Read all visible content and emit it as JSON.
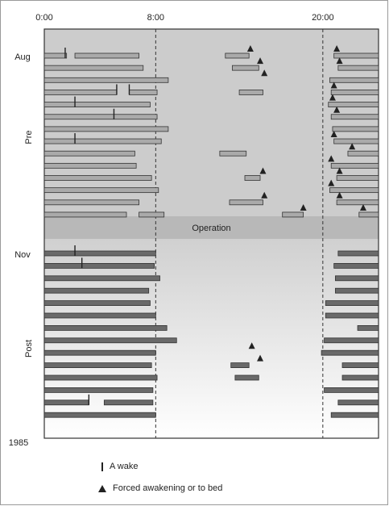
{
  "chart_data": {
    "type": "timeline",
    "x_ticks": [
      "0:00",
      "8:00",
      "20:00"
    ],
    "x_range_hours": [
      0,
      24
    ],
    "dashed_lines_hours": [
      8,
      20
    ],
    "labels": {
      "aug": "Aug",
      "pre": "Pre",
      "operation": "Operation",
      "nov": "Nov",
      "post": "Post",
      "year": "1985"
    },
    "legend": {
      "wake": "A wake",
      "forced": "Forced awakening or to bed"
    },
    "colors": {
      "pre_bar": "#aaaaaa",
      "post_bar": "#6a6a6a",
      "pre_background": "#cccccc",
      "operation_band": "#b8b8b8",
      "outline": "#333333"
    },
    "pre_rows": [
      {
        "bars": [
          [
            0,
            1.6
          ],
          [
            2.2,
            6.8
          ],
          [
            13,
            14.7
          ],
          [
            20.8,
            24
          ]
        ],
        "wakes": [
          1.5
        ],
        "forced": [
          14.8,
          21
        ]
      },
      {
        "bars": [
          [
            0,
            7.1
          ],
          [
            13.5,
            15.4
          ],
          [
            21.1,
            24
          ]
        ],
        "wakes": [],
        "forced": [
          15.5,
          21.2
        ]
      },
      {
        "bars": [
          [
            0,
            8.9
          ],
          [
            20.5,
            24
          ]
        ],
        "wakes": [],
        "forced": [
          15.8
        ]
      },
      {
        "bars": [
          [
            0,
            5.2
          ],
          [
            6.1,
            8.1
          ],
          [
            14,
            15.7
          ],
          [
            20.6,
            24
          ]
        ],
        "wakes": [
          5.2,
          6.1
        ],
        "forced": [
          20.8
        ]
      },
      {
        "bars": [
          [
            0,
            7.6
          ],
          [
            20.4,
            24
          ]
        ],
        "wakes": [
          2.2
        ],
        "forced": [
          20.7
        ]
      },
      {
        "bars": [
          [
            0,
            8.1
          ],
          [
            20.6,
            24
          ]
        ],
        "wakes": [
          5
        ],
        "forced": [
          21
        ]
      },
      {
        "bars": [
          [
            0,
            8.9
          ],
          [
            20.7,
            24
          ]
        ],
        "wakes": [],
        "forced": []
      },
      {
        "bars": [
          [
            0,
            8.4
          ],
          [
            20.8,
            24
          ]
        ],
        "wakes": [
          2.2
        ],
        "forced": [
          20.8
        ]
      },
      {
        "bars": [
          [
            0,
            6.5
          ],
          [
            12.6,
            14.5
          ],
          [
            21.8,
            24
          ]
        ],
        "wakes": [],
        "forced": [
          22.1
        ]
      },
      {
        "bars": [
          [
            0,
            6.6
          ],
          [
            20.6,
            24
          ]
        ],
        "wakes": [],
        "forced": [
          20.6
        ]
      },
      {
        "bars": [
          [
            0,
            7.7
          ],
          [
            14.4,
            15.5
          ],
          [
            21,
            24
          ]
        ],
        "wakes": [],
        "forced": [
          15.7,
          21.2
        ]
      },
      {
        "bars": [
          [
            0,
            8.2
          ],
          [
            20.5,
            24
          ]
        ],
        "wakes": [],
        "forced": [
          20.6
        ]
      },
      {
        "bars": [
          [
            0,
            6.8
          ],
          [
            13.3,
            15.7
          ],
          [
            21,
            24
          ]
        ],
        "wakes": [],
        "forced": [
          15.8,
          21.2
        ]
      },
      {
        "bars": [
          [
            0,
            5.9
          ],
          [
            6.8,
            8.6
          ],
          [
            17.1,
            18.6
          ],
          [
            22.6,
            24
          ]
        ],
        "wakes": [],
        "forced": [
          18.6,
          22.9
        ]
      }
    ],
    "post_rows": [
      {
        "bars": [
          [
            0,
            8
          ],
          [
            21.1,
            24
          ]
        ],
        "wakes": [
          2.2
        ],
        "forced": []
      },
      {
        "bars": [
          [
            0,
            7.9
          ],
          [
            20.8,
            24
          ]
        ],
        "wakes": [
          2.7
        ],
        "forced": []
      },
      {
        "bars": [
          [
            0,
            8.3
          ],
          [
            20.9,
            24
          ]
        ],
        "wakes": [],
        "forced": []
      },
      {
        "bars": [
          [
            0,
            7.5
          ],
          [
            20.9,
            24
          ]
        ],
        "wakes": [],
        "forced": []
      },
      {
        "bars": [
          [
            0,
            7.6
          ],
          [
            20.2,
            24
          ]
        ],
        "wakes": [],
        "forced": []
      },
      {
        "bars": [
          [
            0,
            8
          ],
          [
            20.2,
            24
          ]
        ],
        "wakes": [],
        "forced": []
      },
      {
        "bars": [
          [
            0,
            8.8
          ],
          [
            22.5,
            24
          ]
        ],
        "wakes": [],
        "forced": []
      },
      {
        "bars": [
          [
            0,
            9.5
          ],
          [
            20.1,
            24
          ]
        ],
        "wakes": [],
        "forced": []
      },
      {
        "bars": [
          [
            0,
            8
          ],
          [
            19.9,
            24
          ]
        ],
        "wakes": [],
        "forced": [
          14.9
        ]
      },
      {
        "bars": [
          [
            0,
            7.7
          ],
          [
            13.4,
            14.7
          ],
          [
            21.4,
            24
          ]
        ],
        "wakes": [],
        "forced": [
          15.5
        ]
      },
      {
        "bars": [
          [
            0,
            8.1
          ],
          [
            13.7,
            15.4
          ],
          [
            21.4,
            24
          ]
        ],
        "wakes": [],
        "forced": []
      },
      {
        "bars": [
          [
            0,
            7.8
          ],
          [
            20.1,
            24
          ]
        ],
        "wakes": [],
        "forced": []
      },
      {
        "bars": [
          [
            0,
            3.2
          ],
          [
            4.3,
            7.8
          ],
          [
            21.1,
            24
          ]
        ],
        "wakes": [
          3.2
        ],
        "forced": []
      },
      {
        "bars": [
          [
            0,
            8
          ],
          [
            20.6,
            24
          ]
        ],
        "wakes": [],
        "forced": []
      }
    ]
  }
}
